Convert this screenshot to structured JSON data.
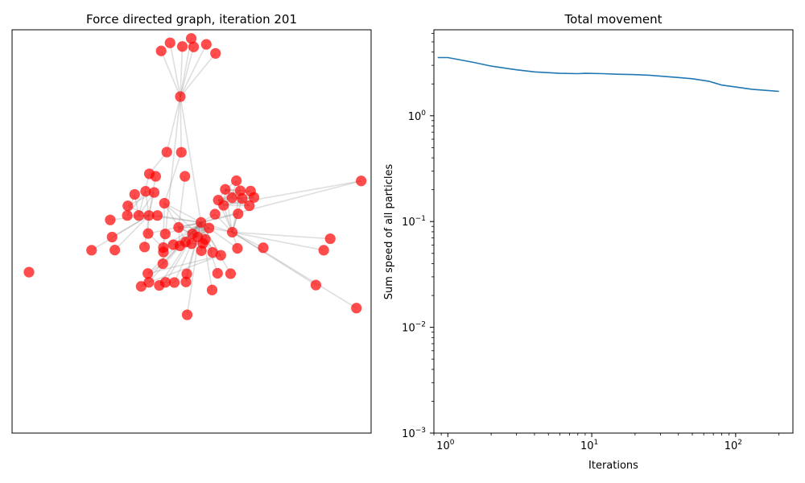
{
  "colors": {
    "node": "#ff0000",
    "edge": "#888888",
    "line": "#1f77b4",
    "axes": "#000000"
  },
  "chart_data": [
    {
      "type": "scatter",
      "title": "Force directed graph, iteration 201",
      "xlabel": "",
      "ylabel": "",
      "axis_ticks": false,
      "xlim": [
        -0.55,
        1.55
      ],
      "ylim": [
        -0.55,
        1.55
      ],
      "nodes": [
        [
          0.498,
          1.505
        ],
        [
          0.322,
          1.44
        ],
        [
          0.374,
          1.482
        ],
        [
          0.446,
          1.463
        ],
        [
          0.512,
          1.461
        ],
        [
          0.586,
          1.474
        ],
        [
          0.64,
          1.427
        ],
        [
          0.434,
          1.202
        ],
        [
          0.355,
          0.913
        ],
        [
          0.44,
          0.912
        ],
        [
          0.461,
          0.787
        ],
        [
          0.29,
          0.787
        ],
        [
          0.253,
          0.8
        ],
        [
          1.492,
          0.763
        ],
        [
          0.762,
          0.764
        ],
        [
          0.845,
          0.71
        ],
        [
          0.697,
          0.719
        ],
        [
          0.785,
          0.712
        ],
        [
          0.231,
          0.709
        ],
        [
          0.281,
          0.703
        ],
        [
          0.167,
          0.693
        ],
        [
          0.656,
          0.663
        ],
        [
          0.737,
          0.676
        ],
        [
          0.796,
          0.671
        ],
        [
          0.865,
          0.677
        ],
        [
          0.341,
          0.647
        ],
        [
          0.687,
          0.636
        ],
        [
          0.838,
          0.634
        ],
        [
          0.127,
          0.633
        ],
        [
          0.124,
          0.583
        ],
        [
          0.191,
          0.583
        ],
        [
          0.25,
          0.583
        ],
        [
          0.3,
          0.583
        ],
        [
          0.637,
          0.59
        ],
        [
          0.772,
          0.592
        ],
        [
          0.024,
          0.56
        ],
        [
          0.555,
          0.547
        ],
        [
          0.424,
          0.521
        ],
        [
          0.602,
          0.518
        ],
        [
          0.246,
          0.489
        ],
        [
          0.505,
          0.487
        ],
        [
          0.346,
          0.487
        ],
        [
          0.738,
          0.496
        ],
        [
          1.311,
          0.462
        ],
        [
          0.035,
          0.471
        ],
        [
          0.537,
          0.471
        ],
        [
          0.58,
          0.458
        ],
        [
          0.465,
          0.445
        ],
        [
          0.5,
          0.436
        ],
        [
          0.566,
          0.438
        ],
        [
          0.393,
          0.431
        ],
        [
          0.432,
          0.425
        ],
        [
          0.335,
          0.416
        ],
        [
          0.225,
          0.419
        ],
        [
          0.768,
          0.412
        ],
        [
          0.919,
          0.415
        ],
        [
          -0.085,
          0.402
        ],
        [
          0.051,
          0.403
        ],
        [
          0.557,
          0.4
        ],
        [
          1.273,
          0.402
        ],
        [
          0.623,
          0.391
        ],
        [
          0.335,
          0.393
        ],
        [
          0.671,
          0.376
        ],
        [
          0.332,
          0.332
        ],
        [
          0.244,
          0.281
        ],
        [
          0.652,
          0.282
        ],
        [
          0.728,
          0.28
        ],
        [
          0.472,
          0.279
        ],
        [
          0.25,
          0.235
        ],
        [
          0.467,
          0.237
        ],
        [
          0.347,
          0.235
        ],
        [
          0.399,
          0.234
        ],
        [
          0.205,
          0.214
        ],
        [
          0.311,
          0.219
        ],
        [
          1.227,
          0.221
        ],
        [
          0.62,
          0.195
        ],
        [
          0.474,
          0.066
        ],
        [
          1.464,
          0.101
        ],
        [
          -0.451,
          0.288
        ]
      ],
      "edges": [
        [
          7,
          0
        ],
        [
          7,
          1
        ],
        [
          7,
          2
        ],
        [
          7,
          3
        ],
        [
          7,
          4
        ],
        [
          7,
          5
        ],
        [
          7,
          6
        ],
        [
          7,
          8
        ],
        [
          7,
          9
        ],
        [
          7,
          36
        ],
        [
          7,
          61
        ],
        [
          8,
          12
        ],
        [
          9,
          25
        ],
        [
          10,
          37
        ],
        [
          11,
          31
        ],
        [
          12,
          30
        ],
        [
          25,
          63
        ],
        [
          25,
          62
        ],
        [
          25,
          36
        ],
        [
          25,
          37
        ],
        [
          16,
          14
        ],
        [
          16,
          15
        ],
        [
          16,
          17
        ],
        [
          16,
          21
        ],
        [
          16,
          22
        ],
        [
          16,
          23
        ],
        [
          16,
          24
        ],
        [
          16,
          26
        ],
        [
          16,
          27
        ],
        [
          21,
          15
        ],
        [
          21,
          17
        ],
        [
          21,
          22
        ],
        [
          21,
          24
        ],
        [
          21,
          26
        ],
        [
          21,
          27
        ],
        [
          22,
          24
        ],
        [
          22,
          23
        ],
        [
          23,
          27
        ],
        [
          24,
          26
        ],
        [
          26,
          27
        ],
        [
          14,
          22
        ],
        [
          14,
          17
        ],
        [
          13,
          36
        ],
        [
          13,
          26
        ],
        [
          18,
          31
        ],
        [
          18,
          19
        ],
        [
          18,
          29
        ],
        [
          19,
          28
        ],
        [
          19,
          30
        ],
        [
          19,
          31
        ],
        [
          20,
          30
        ],
        [
          20,
          29
        ],
        [
          28,
          31
        ],
        [
          29,
          30
        ],
        [
          30,
          31
        ],
        [
          31,
          36
        ],
        [
          32,
          36
        ],
        [
          33,
          36
        ],
        [
          34,
          36
        ],
        [
          35,
          31
        ],
        [
          44,
          31
        ],
        [
          57,
          31
        ],
        [
          56,
          31
        ],
        [
          53,
          31
        ],
        [
          39,
          36
        ],
        [
          41,
          36
        ],
        [
          39,
          31
        ],
        [
          36,
          38
        ],
        [
          36,
          37
        ],
        [
          36,
          40
        ],
        [
          36,
          45
        ],
        [
          36,
          46
        ],
        [
          36,
          47
        ],
        [
          36,
          48
        ],
        [
          36,
          49
        ],
        [
          36,
          50
        ],
        [
          36,
          51
        ],
        [
          36,
          52
        ],
        [
          36,
          54
        ],
        [
          36,
          58
        ],
        [
          36,
          60
        ],
        [
          37,
          38
        ],
        [
          37,
          40
        ],
        [
          37,
          45
        ],
        [
          37,
          47
        ],
        [
          37,
          51
        ],
        [
          38,
          40
        ],
        [
          38,
          45
        ],
        [
          38,
          46
        ],
        [
          40,
          45
        ],
        [
          45,
          46
        ],
        [
          46,
          49
        ],
        [
          47,
          48
        ],
        [
          48,
          49
        ],
        [
          50,
          51
        ],
        [
          36,
          42
        ],
        [
          42,
          55
        ],
        [
          42,
          43
        ],
        [
          42,
          59
        ],
        [
          42,
          74
        ],
        [
          42,
          77
        ],
        [
          42,
          26
        ],
        [
          42,
          21
        ],
        [
          42,
          16
        ],
        [
          42,
          23
        ],
        [
          42,
          17
        ],
        [
          36,
          66
        ],
        [
          36,
          65
        ],
        [
          36,
          62
        ],
        [
          36,
          63
        ],
        [
          36,
          64
        ],
        [
          36,
          68
        ],
        [
          36,
          69
        ],
        [
          36,
          70
        ],
        [
          36,
          71
        ],
        [
          36,
          72
        ],
        [
          36,
          73
        ],
        [
          36,
          75
        ],
        [
          36,
          76
        ],
        [
          36,
          67
        ],
        [
          62,
          64
        ],
        [
          62,
          68
        ],
        [
          63,
          64
        ],
        [
          61,
          52
        ],
        [
          52,
          39
        ],
        [
          67,
          69
        ],
        [
          70,
          71
        ],
        [
          72,
          68
        ],
        [
          73,
          70
        ],
        [
          49,
          60
        ],
        [
          54,
          42
        ],
        [
          33,
          42
        ],
        [
          38,
          42
        ],
        [
          34,
          42
        ]
      ]
    },
    {
      "type": "line",
      "title": "Total movement",
      "xlabel": "Iterations",
      "ylabel": "Sum speed of all particles",
      "xscale": "log",
      "yscale": "log",
      "xlim": [
        0.8,
        250
      ],
      "ylim": [
        0.001,
        6.5
      ],
      "xticks": [
        {
          "v": 1,
          "label": "10",
          "exp": "0"
        },
        {
          "v": 10,
          "label": "10",
          "exp": "1"
        },
        {
          "v": 100,
          "label": "10",
          "exp": "2"
        }
      ],
      "yticks": [
        {
          "v": 0.001,
          "label": "10",
          "exp": "−3"
        },
        {
          "v": 0.01,
          "label": "10",
          "exp": "−2"
        },
        {
          "v": 0.1,
          "label": "10",
          "exp": "−1"
        },
        {
          "v": 1,
          "label": "10",
          "exp": "0"
        }
      ],
      "series": [
        {
          "x": [
            0.85,
            1,
            1.5,
            2,
            3,
            4,
            6,
            8,
            9,
            12,
            15,
            20,
            25,
            30,
            40,
            50,
            65,
            80,
            100,
            130,
            160,
            200
          ],
          "y": [
            3.55,
            3.55,
            3.2,
            2.95,
            2.72,
            2.6,
            2.52,
            2.5,
            2.52,
            2.5,
            2.47,
            2.45,
            2.42,
            2.37,
            2.3,
            2.24,
            2.12,
            1.95,
            1.87,
            1.78,
            1.74,
            1.7
          ]
        }
      ]
    }
  ]
}
